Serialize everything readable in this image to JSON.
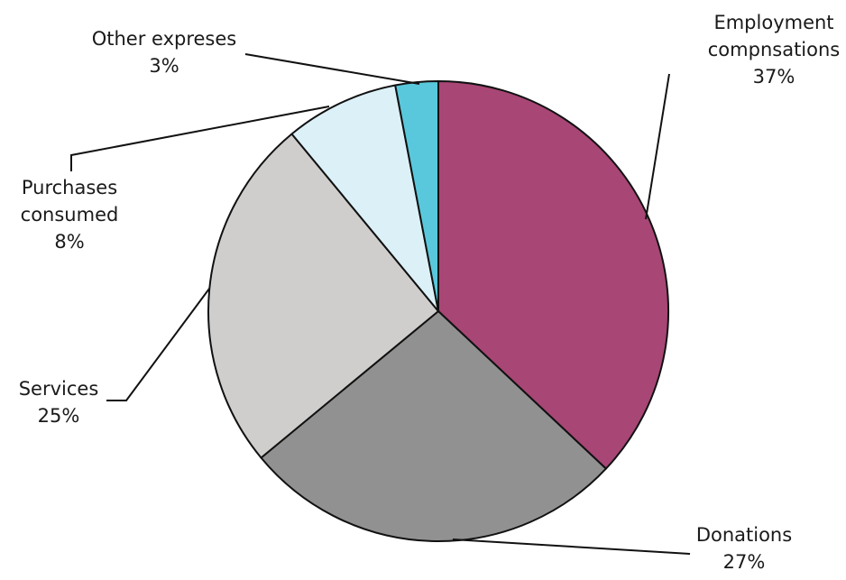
{
  "chart_data": {
    "type": "pie",
    "title": "",
    "legend": "none",
    "slices": [
      {
        "label_lines": [
          "Employment",
          "compnsations"
        ],
        "value": 37,
        "value_label": "37%",
        "color": "#a84675"
      },
      {
        "label_lines": [
          "Donations"
        ],
        "value": 27,
        "value_label": "27%",
        "color": "#919191"
      },
      {
        "label_lines": [
          "Services"
        ],
        "value": 25,
        "value_label": "25%",
        "color": "#cfcecc"
      },
      {
        "label_lines": [
          "Purchases",
          "consumed"
        ],
        "value": 8,
        "value_label": "8%",
        "color": "#dcf0f7"
      },
      {
        "label_lines": [
          "Other expreses"
        ],
        "value": 3,
        "value_label": "3%",
        "color": "#5ac8dc"
      }
    ]
  }
}
